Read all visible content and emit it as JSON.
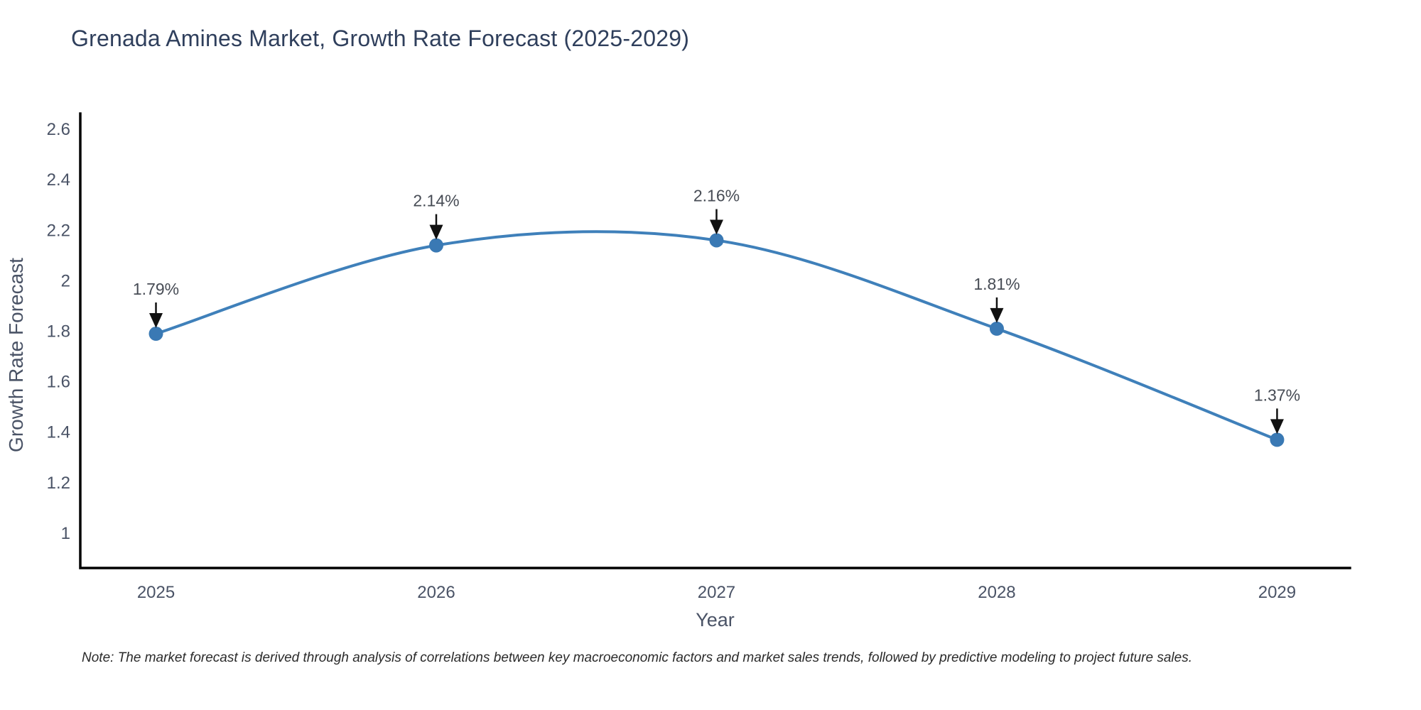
{
  "chart_data": {
    "type": "line",
    "title": "Grenada Amines Market, Growth Rate Forecast (2025-2029)",
    "xlabel": "Year",
    "ylabel": "Growth Rate Forecast",
    "categories": [
      2025,
      2026,
      2027,
      2028,
      2029
    ],
    "values": [
      1.79,
      2.14,
      2.16,
      1.81,
      1.37
    ],
    "point_labels": [
      "1.79%",
      "2.14%",
      "2.16%",
      "1.81%",
      "1.37%"
    ],
    "series_name": "Growth Rate Forecast",
    "line_shape": "spline",
    "grid": false,
    "legend": "none",
    "xlim": [
      2024.73,
      2029.26
    ],
    "ylim": [
      0.862,
      2.662
    ],
    "ytick_labels": [
      "1",
      "1.2",
      "1.4",
      "1.6",
      "1.8",
      "2",
      "2.2",
      "2.4",
      "2.6"
    ],
    "xtick_labels": [
      "2025",
      "2026",
      "2027",
      "2028",
      "2029"
    ],
    "colors": {
      "line": "#3f80ba",
      "marker": "#3a79b4",
      "axis": "#000000",
      "tick_label": "#4a5366",
      "axis_title": "#4a5366",
      "title": "#2f3f5c",
      "annotation_text": "#474c55",
      "arrow": "#111111",
      "background": "#ffffff"
    }
  },
  "footnote": {
    "text": "Note: The market forecast is derived through analysis of correlations between key macroeconomic factors and market sales trends, followed by predictive modeling to project future sales."
  }
}
